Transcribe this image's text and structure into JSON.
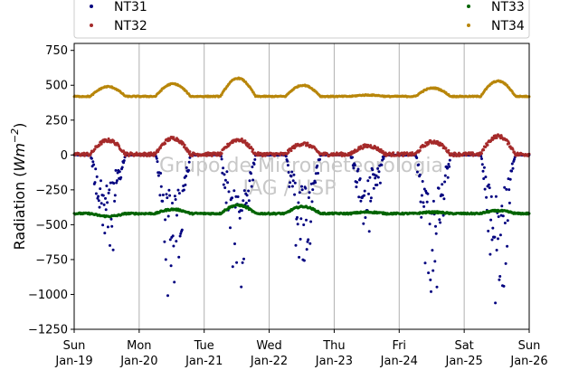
{
  "chart_data": {
    "type": "scatter",
    "title": "",
    "xlabel": "",
    "ylabel": "Radiation (Wm⁻²)",
    "ylabel_parts": {
      "base": "Radiation (",
      "unit": "Wm",
      "exp": "−2",
      "close": ")"
    },
    "ylim": [
      -1250,
      800
    ],
    "xlim_days": [
      0,
      7
    ],
    "yticks": [
      -1250,
      -1000,
      -750,
      -500,
      -250,
      0,
      250,
      500,
      750
    ],
    "ytick_labels": [
      "−1250",
      "−1000",
      "−750",
      "−500",
      "−250",
      "0",
      "250",
      "500",
      "750"
    ],
    "xticks": [
      {
        "day": 0,
        "line1": "Sun",
        "line2": "Jan-19"
      },
      {
        "day": 1,
        "line1": "Mon",
        "line2": "Jan-20"
      },
      {
        "day": 2,
        "line1": "Tue",
        "line2": "Jan-21"
      },
      {
        "day": 3,
        "line1": "Wed",
        "line2": "Jan-22"
      },
      {
        "day": 4,
        "line1": "Thu",
        "line2": "Jan-23"
      },
      {
        "day": 5,
        "line1": "Fri",
        "line2": "Jan-24"
      },
      {
        "day": 6,
        "line1": "Sat",
        "line2": "Jan-25"
      },
      {
        "day": 7,
        "line1": "Sun",
        "line2": "Jan-26"
      }
    ],
    "grid": "vertical",
    "legend": {
      "placement": "top",
      "columns": 2
    },
    "watermark": [
      "Grupo de Micrometeorologia",
      "IAG / USP"
    ],
    "series": [
      {
        "name": "NT31",
        "color": "#00007f",
        "base": 0,
        "day_amp": [
          -780,
          -1100,
          -1050,
          -920,
          -530,
          -1080,
          -1190
        ],
        "noise": 200
      },
      {
        "name": "NT32",
        "color": "#a52a2a",
        "base": 5,
        "day_amp": [
          100,
          115,
          105,
          75,
          60,
          90,
          130
        ],
        "noise": 25
      },
      {
        "name": "NT33",
        "color": "#006400",
        "base": -420,
        "day_amp": [
          -20,
          30,
          60,
          50,
          10,
          10,
          20
        ],
        "noise": 12
      },
      {
        "name": "NT34",
        "color": "#b8860b",
        "base": 420,
        "day_amp": [
          70,
          90,
          130,
          80,
          10,
          60,
          110
        ],
        "noise": 8
      }
    ]
  }
}
